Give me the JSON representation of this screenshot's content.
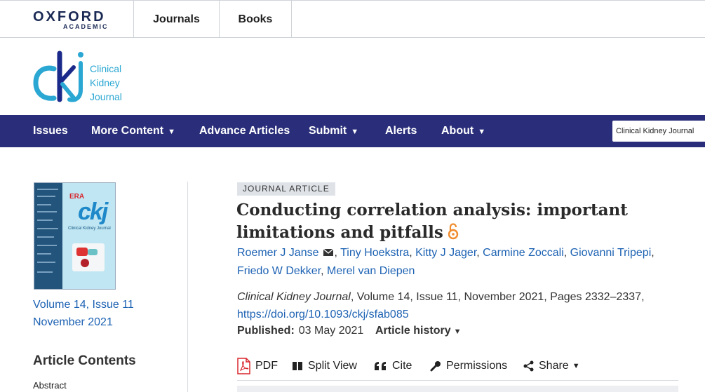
{
  "brand": {
    "oup_name": "OXFORD",
    "oup_sub": "ACADEMIC",
    "journal_logo_lines": [
      "Clinical",
      "Kidney",
      "Journal"
    ]
  },
  "topnav": {
    "journals": "Journals",
    "books": "Books"
  },
  "mainnav": {
    "items": [
      {
        "label": "Issues",
        "dropdown": false
      },
      {
        "label": "More Content",
        "dropdown": true
      },
      {
        "label": "Advance Articles",
        "dropdown": false
      },
      {
        "label": "Submit",
        "dropdown": true
      },
      {
        "label": "Alerts",
        "dropdown": false
      },
      {
        "label": "About",
        "dropdown": true
      }
    ],
    "search_scope": "Clinical Kidney Journal"
  },
  "sidebar": {
    "volume_issue": "Volume 14, Issue 11",
    "issue_date": "November 2021",
    "contents_title": "Article Contents",
    "contents_items": [
      "Abstract"
    ]
  },
  "article": {
    "type_badge": "JOURNAL ARTICLE",
    "title": "Conducting correlation analysis: important limitations and pitfalls",
    "authors": [
      "Roemer J Janse",
      "Tiny Hoekstra",
      "Kitty J Jager",
      "Carmine Zoccali",
      "Giovanni Tripepi",
      "Friedo W Dekker",
      "Merel van Diepen"
    ],
    "journal": "Clinical Kidney Journal",
    "citation_rest": ", Volume 14, Issue 11, November 2021, Pages 2332–2337,",
    "doi": "https://doi.org/10.1093/ckj/sfab085",
    "published_label": "Published:",
    "published_date": "03 May 2021",
    "history_label": "Article history"
  },
  "tools": {
    "pdf": "PDF",
    "split_view": "Split View",
    "cite": "Cite",
    "permissions": "Permissions",
    "share": "Share"
  },
  "colors": {
    "nav_bg": "#2a2e7a",
    "link": "#1d62b3",
    "open_access": "#f08b2c",
    "pdf_red": "#d8262e"
  }
}
